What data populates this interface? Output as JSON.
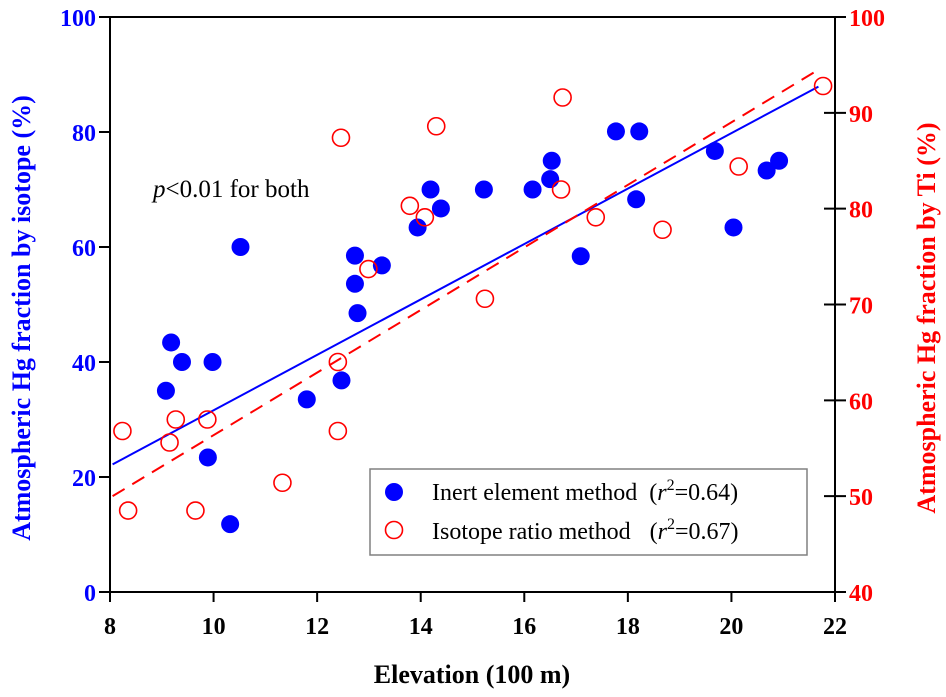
{
  "chart_data": {
    "type": "scatter",
    "title": "",
    "xlabel": "Elevation (100 m)",
    "ylabel_left": "Atmospheric Hg fraction  by isotope (%)",
    "ylabel_right": "Atmospheric Hg fraction by Ti (%)",
    "xlim": [
      8,
      22
    ],
    "ylim_left": [
      0,
      100
    ],
    "ylim_right": [
      40,
      100
    ],
    "x_ticks": [
      "8",
      "10",
      "12",
      "14",
      "16",
      "18",
      "20",
      "22"
    ],
    "y_left_ticks": [
      "0",
      "20",
      "40",
      "60",
      "80",
      "100"
    ],
    "y_right_ticks": [
      "40",
      "50",
      "60",
      "70",
      "80",
      "90",
      "100"
    ],
    "grid": false,
    "legend_position": "bottom-right",
    "annotation": {
      "italic": "p",
      "text": "<0.01 for both"
    },
    "colors": {
      "left_axis": "#0000ff",
      "right_axis": "#ff0000",
      "inert": "#0000ff",
      "isotope": "#ff0000",
      "frame": "#000000"
    },
    "series": [
      {
        "name": "Inert element method",
        "r2_label": "(r",
        "r2_sup": "2",
        "r2_value": "=0.64)",
        "axis": "left",
        "marker": "filled-circle",
        "points": [
          [
            10.52,
            60.0
          ],
          [
            9.18,
            43.4
          ],
          [
            9.39,
            40.0
          ],
          [
            9.98,
            40.0
          ],
          [
            9.08,
            35.0
          ],
          [
            9.89,
            23.4
          ],
          [
            10.32,
            11.8
          ],
          [
            14.19,
            70.0
          ],
          [
            15.22,
            70.0
          ],
          [
            14.39,
            66.7
          ],
          [
            13.94,
            63.4
          ],
          [
            12.73,
            58.5
          ],
          [
            13.25,
            56.8
          ],
          [
            12.73,
            53.6
          ],
          [
            12.78,
            48.5
          ],
          [
            12.47,
            36.8
          ],
          [
            11.8,
            33.5
          ],
          [
            16.53,
            75.0
          ],
          [
            16.5,
            71.8
          ],
          [
            16.16,
            70.0
          ],
          [
            17.77,
            80.1
          ],
          [
            18.22,
            80.1
          ],
          [
            19.68,
            76.7
          ],
          [
            20.92,
            75.0
          ],
          [
            20.68,
            73.3
          ],
          [
            18.16,
            68.3
          ],
          [
            20.04,
            63.4
          ],
          [
            17.09,
            58.4
          ]
        ],
        "fit": {
          "x": [
            8.05,
            21.68
          ],
          "y": [
            22.2,
            87.9
          ],
          "style": "solid"
        }
      },
      {
        "name": "Isotope ratio method",
        "r2_label": "(r",
        "r2_sup": "2",
        "r2_value": "=0.67)",
        "axis": "right",
        "marker": "open-circle",
        "points": [
          [
            8.24,
            56.8
          ],
          [
            9.27,
            58.0
          ],
          [
            9.88,
            58.0
          ],
          [
            9.15,
            55.6
          ],
          [
            8.35,
            48.5
          ],
          [
            9.65,
            48.5
          ],
          [
            11.33,
            51.4
          ],
          [
            12.46,
            87.4
          ],
          [
            14.3,
            88.6
          ],
          [
            13.79,
            80.3
          ],
          [
            14.08,
            79.1
          ],
          [
            12.99,
            73.7
          ],
          [
            15.24,
            70.6
          ],
          [
            12.4,
            64.0
          ],
          [
            12.4,
            56.8
          ],
          [
            16.74,
            91.6
          ],
          [
            16.71,
            82.0
          ],
          [
            17.38,
            79.1
          ],
          [
            18.67,
            77.8
          ],
          [
            20.14,
            84.4
          ],
          [
            21.77,
            92.8
          ]
        ],
        "fit": {
          "x": [
            8.05,
            21.62
          ],
          "y": [
            50.0,
            94.3
          ],
          "style": "dashed"
        }
      }
    ]
  }
}
